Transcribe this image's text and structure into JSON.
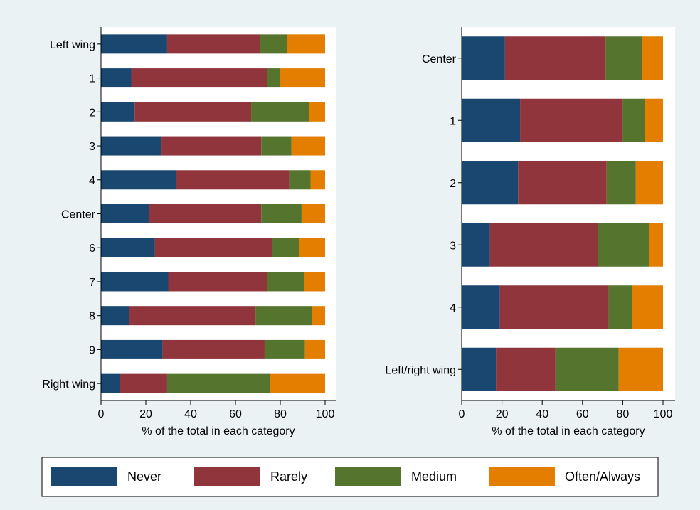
{
  "chart_data": [
    {
      "type": "bar",
      "orientation": "horizontal",
      "stacked": true,
      "xlabel": "% of the total in each category",
      "xlim": [
        0,
        100
      ],
      "xticks": [
        0,
        20,
        40,
        60,
        80,
        100
      ],
      "categories": [
        "Left wing",
        "1",
        "2",
        "3",
        "4",
        "Center",
        "6",
        "7",
        "8",
        "9",
        "Right wing"
      ],
      "series": [
        {
          "name": "Never",
          "values": [
            29.5,
            13.5,
            15,
            27,
            33.5,
            21.5,
            24,
            30,
            12.5,
            27.5,
            8.5
          ]
        },
        {
          "name": "Rarely",
          "values": [
            41.5,
            60.5,
            52,
            44.5,
            50.5,
            50,
            52.5,
            44,
            56.5,
            45.5,
            21
          ]
        },
        {
          "name": "Medium",
          "values": [
            12,
            6,
            26,
            13.5,
            9.5,
            18,
            12,
            16.5,
            25,
            18,
            46
          ]
        },
        {
          "name": "Often/Always",
          "values": [
            17,
            20,
            7,
            15,
            6.5,
            10.5,
            11.5,
            9.5,
            6,
            9,
            24.5
          ]
        }
      ]
    },
    {
      "type": "bar",
      "orientation": "horizontal",
      "stacked": true,
      "xlabel": "% of the total in each category",
      "xlim": [
        0,
        100
      ],
      "xticks": [
        0,
        20,
        40,
        60,
        80,
        100
      ],
      "categories": [
        "Center",
        "1",
        "2",
        "3",
        "4",
        "Left/right wing"
      ],
      "series": [
        {
          "name": "Never",
          "values": [
            21.5,
            29,
            28,
            14,
            19,
            17
          ]
        },
        {
          "name": "Rarely",
          "values": [
            50,
            51,
            44,
            53.5,
            54,
            29.5
          ]
        },
        {
          "name": "Medium",
          "values": [
            18,
            11,
            14.5,
            25.5,
            11.5,
            31.5
          ]
        },
        {
          "name": "Often/Always",
          "values": [
            10.5,
            9,
            13.5,
            7,
            15.5,
            22
          ]
        }
      ]
    }
  ],
  "legend": {
    "placement": "bottom",
    "items": [
      {
        "label": "Never",
        "color": "#1a476f"
      },
      {
        "label": "Rarely",
        "color": "#90353b"
      },
      {
        "label": "Medium",
        "color": "#55752f"
      },
      {
        "label": "Often/Always",
        "color": "#e37e00"
      }
    ]
  }
}
